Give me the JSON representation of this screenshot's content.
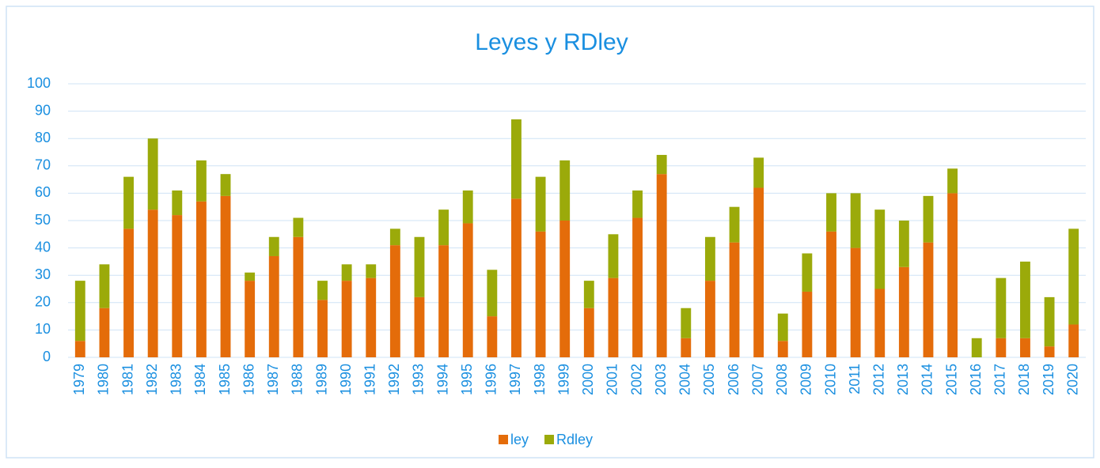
{
  "chart_data": {
    "type": "stacked_bar",
    "title": "Leyes  y RDley",
    "categories": [
      "1979",
      "1980",
      "1981",
      "1982",
      "1983",
      "1984",
      "1985",
      "1986",
      "1987",
      "1988",
      "1989",
      "1990",
      "1991",
      "1992",
      "1993",
      "1994",
      "1995",
      "1996",
      "1997",
      "1998",
      "1999",
      "2000",
      "2001",
      "2002",
      "2003",
      "2004",
      "2005",
      "2006",
      "2007",
      "2008",
      "2009",
      "2010",
      "2011",
      "2012",
      "2013",
      "2014",
      "2015",
      "2016",
      "2017",
      "2018",
      "2019",
      "2020"
    ],
    "series": [
      {
        "name": "ley",
        "color": "#e46c0a",
        "values": [
          6,
          18,
          47,
          54,
          52,
          57,
          59,
          28,
          37,
          44,
          21,
          28,
          29,
          41,
          22,
          41,
          49,
          15,
          58,
          46,
          50,
          18,
          29,
          51,
          67,
          7,
          28,
          42,
          62,
          6,
          24,
          46,
          40,
          25,
          33,
          42,
          60,
          0,
          7,
          7,
          4,
          12
        ]
      },
      {
        "name": "Rdley",
        "color": "#9baa0a",
        "values": [
          22,
          16,
          19,
          26,
          9,
          15,
          8,
          3,
          7,
          7,
          7,
          6,
          5,
          6,
          22,
          13,
          12,
          17,
          29,
          20,
          22,
          10,
          16,
          10,
          7,
          11,
          16,
          13,
          11,
          10,
          14,
          14,
          20,
          29,
          17,
          17,
          9,
          7,
          22,
          28,
          18,
          35
        ]
      }
    ],
    "ylim": [
      0,
      100
    ],
    "yticks": [
      0,
      10,
      20,
      30,
      40,
      50,
      60,
      70,
      80,
      90,
      100
    ],
    "grid": true,
    "legend": "bottom"
  }
}
